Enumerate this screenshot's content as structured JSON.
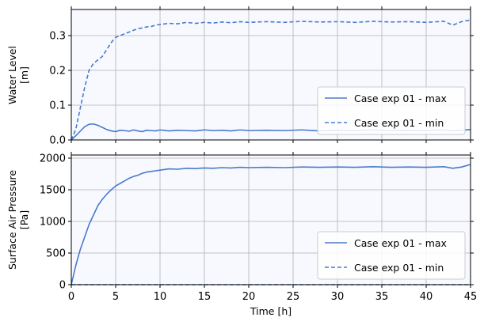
{
  "chart_data": [
    {
      "type": "line",
      "ylabel_line1": "Water Level",
      "ylabel_line2": "[m]",
      "xlim": [
        0,
        45
      ],
      "ylim": [
        0,
        0.375
      ],
      "xticks": [
        0,
        5,
        10,
        15,
        20,
        25,
        30,
        35,
        40,
        45
      ],
      "yticks": [
        0.0,
        0.1,
        0.2,
        0.3
      ],
      "ytick_labels": [
        "0.0",
        "0.1",
        "0.2",
        "0.3"
      ],
      "grid": true,
      "legend_position": "lower-right",
      "series": [
        {
          "name": "Case exp 01 - max",
          "style": "solid",
          "color": "#4a7acc",
          "x": [
            0,
            0.5,
            1,
            1.5,
            2,
            2.5,
            3,
            3.5,
            4,
            4.5,
            5,
            5.5,
            6,
            6.5,
            7,
            7.5,
            8,
            8.5,
            9,
            9.5,
            10,
            11,
            12,
            13,
            14,
            15,
            16,
            17,
            18,
            19,
            20,
            22,
            24,
            26,
            28,
            30,
            32,
            34,
            36,
            38,
            40,
            42,
            43,
            44,
            45
          ],
          "y": [
            0.0,
            0.012,
            0.025,
            0.038,
            0.045,
            0.046,
            0.042,
            0.036,
            0.03,
            0.026,
            0.024,
            0.028,
            0.027,
            0.025,
            0.029,
            0.026,
            0.024,
            0.028,
            0.027,
            0.026,
            0.029,
            0.026,
            0.028,
            0.027,
            0.026,
            0.029,
            0.027,
            0.028,
            0.026,
            0.029,
            0.027,
            0.028,
            0.027,
            0.029,
            0.026,
            0.028,
            0.027,
            0.029,
            0.027,
            0.028,
            0.027,
            0.029,
            0.026,
            0.028,
            0.03
          ]
        },
        {
          "name": "Case exp 01 - min",
          "style": "dashed",
          "color": "#4a7acc",
          "x": [
            0,
            0.5,
            1,
            1.5,
            2,
            2.5,
            3,
            3.5,
            4,
            4.5,
            5,
            5.5,
            6,
            6.5,
            7,
            7.5,
            8,
            8.5,
            9,
            9.5,
            10,
            11,
            12,
            13,
            14,
            15,
            16,
            17,
            18,
            19,
            20,
            22,
            24,
            26,
            28,
            30,
            32,
            34,
            36,
            38,
            40,
            42,
            43,
            44,
            45
          ],
          "y": [
            0.0,
            0.03,
            0.09,
            0.15,
            0.2,
            0.22,
            0.23,
            0.24,
            0.26,
            0.28,
            0.295,
            0.3,
            0.305,
            0.31,
            0.315,
            0.32,
            0.322,
            0.325,
            0.326,
            0.33,
            0.332,
            0.335,
            0.334,
            0.338,
            0.335,
            0.338,
            0.336,
            0.339,
            0.337,
            0.34,
            0.338,
            0.34,
            0.338,
            0.341,
            0.339,
            0.34,
            0.338,
            0.341,
            0.339,
            0.34,
            0.338,
            0.341,
            0.33,
            0.34,
            0.345
          ]
        }
      ]
    },
    {
      "type": "line",
      "xlabel": "Time [h]",
      "ylabel_line1": "Surface Air Pressure",
      "ylabel_line2": "[Pa]",
      "xlim": [
        0,
        45
      ],
      "ylim": [
        0,
        2050
      ],
      "xticks": [
        0,
        5,
        10,
        15,
        20,
        25,
        30,
        35,
        40,
        45
      ],
      "xtick_labels": [
        "0",
        "5",
        "10",
        "15",
        "20",
        "25",
        "30",
        "35",
        "40",
        "45"
      ],
      "yticks": [
        0,
        500,
        1000,
        1500,
        2000
      ],
      "ytick_labels": [
        "0",
        "500",
        "1000",
        "1500",
        "2000"
      ],
      "grid": true,
      "legend_position": "lower-right",
      "series": [
        {
          "name": "Case exp 01 - max",
          "style": "solid",
          "color": "#4a7acc",
          "x": [
            0,
            0.5,
            1,
            1.5,
            2,
            2.5,
            3,
            3.5,
            4,
            4.5,
            5,
            5.5,
            6,
            6.5,
            7,
            7.5,
            8,
            8.5,
            9,
            9.5,
            10,
            11,
            12,
            13,
            14,
            15,
            16,
            17,
            18,
            19,
            20,
            22,
            24,
            26,
            28,
            30,
            32,
            34,
            36,
            38,
            40,
            42,
            43,
            44,
            45
          ],
          "y": [
            0,
            300,
            550,
            750,
            950,
            1100,
            1250,
            1350,
            1430,
            1500,
            1560,
            1600,
            1640,
            1680,
            1710,
            1730,
            1760,
            1780,
            1790,
            1800,
            1810,
            1830,
            1825,
            1840,
            1835,
            1845,
            1840,
            1850,
            1845,
            1855,
            1850,
            1855,
            1850,
            1860,
            1855,
            1860,
            1855,
            1865,
            1855,
            1860,
            1855,
            1865,
            1840,
            1860,
            1900
          ]
        },
        {
          "name": "Case exp 01 - min",
          "style": "dashed",
          "color": "#4a7acc",
          "x": [
            0,
            45
          ],
          "y": [
            0,
            0
          ]
        }
      ]
    }
  ]
}
